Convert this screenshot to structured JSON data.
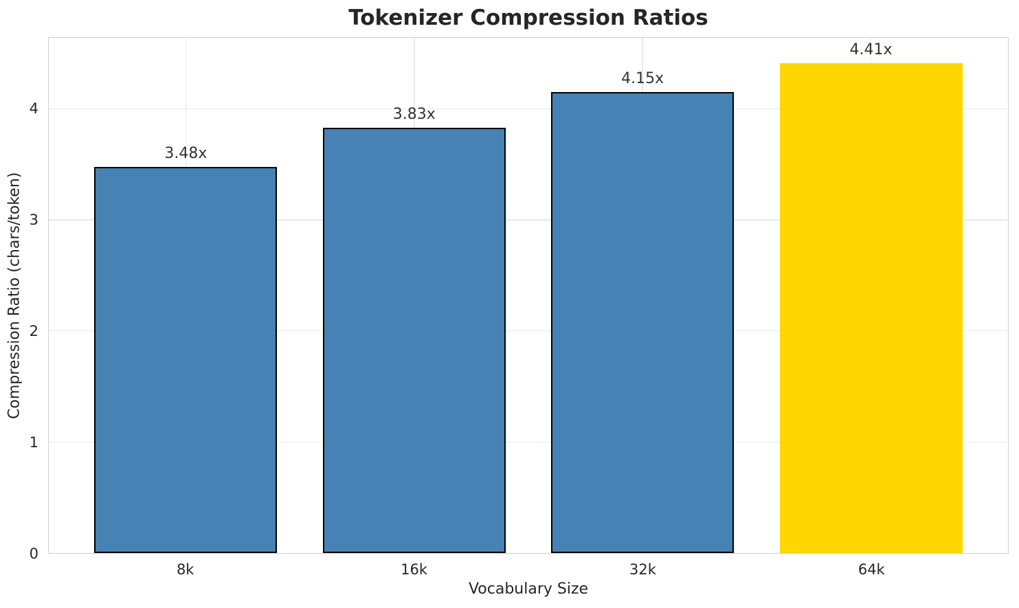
{
  "chart_data": {
    "type": "bar",
    "title": "Tokenizer Compression Ratios",
    "xlabel": "Vocabulary Size",
    "ylabel": "Compression Ratio (chars/token)",
    "categories": [
      "8k",
      "16k",
      "32k",
      "64k"
    ],
    "values": [
      3.48,
      3.83,
      4.15,
      4.41
    ],
    "bar_labels": [
      "3.48x",
      "3.83x",
      "4.15x",
      "4.41x"
    ],
    "yticks": [
      0,
      1,
      2,
      3,
      4
    ],
    "ylim": [
      0,
      4.64
    ],
    "xlim_units": 4.2,
    "bar_width_units": 0.8,
    "first_center_units": 0.6,
    "grid": true,
    "legend": "none",
    "bar_colors": [
      "#4682b4",
      "#4682b4",
      "#4682b4",
      "#ffd700"
    ],
    "edge_colors": [
      "#000000",
      "#000000",
      "#000000",
      "#ffd700"
    ],
    "highlight_index": 3,
    "accent_color": "#ffd700",
    "base_color": "#4682b4"
  }
}
